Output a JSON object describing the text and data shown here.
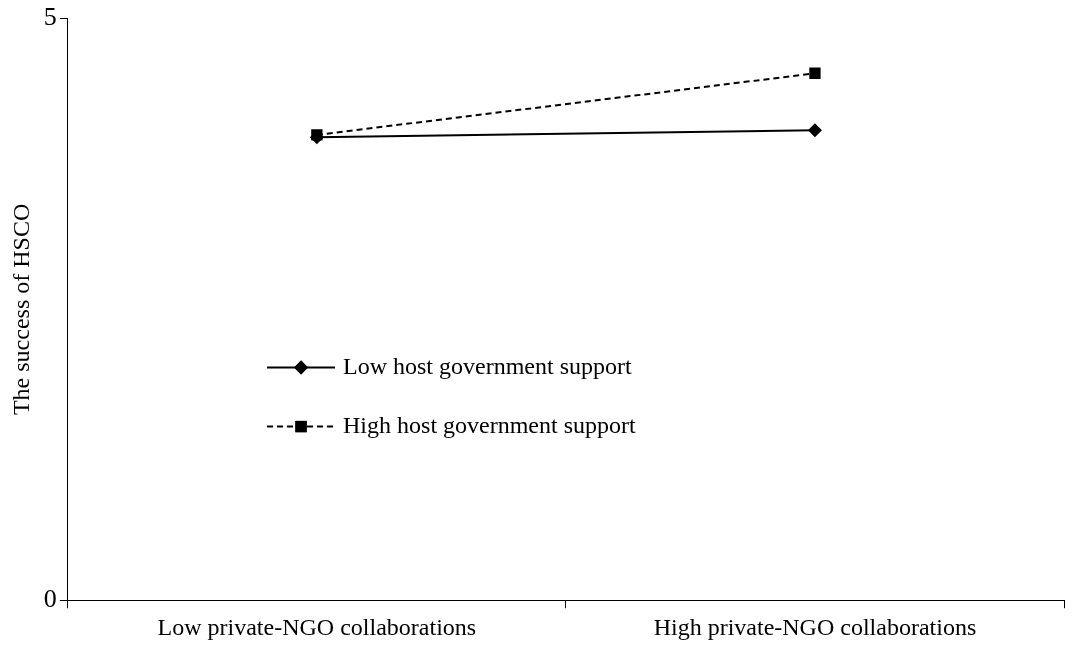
{
  "chart_data": {
    "type": "line",
    "ylabel": "The success of HSCO",
    "categories": [
      "Low private-NGO collaborations",
      "High private-NGO collaborations"
    ],
    "series": [
      {
        "name": "Low host government support",
        "color": "#000000",
        "values": [
          3.98,
          4.04
        ],
        "marker": "diamond",
        "line_style": "solid"
      },
      {
        "name": "High host government support",
        "color": "#000000",
        "values": [
          4.0,
          4.53
        ],
        "marker": "square",
        "line_style": "dashed"
      }
    ],
    "ylim": [
      0,
      5
    ],
    "yticks": [
      0,
      5
    ],
    "grid": false,
    "legend": "left"
  }
}
